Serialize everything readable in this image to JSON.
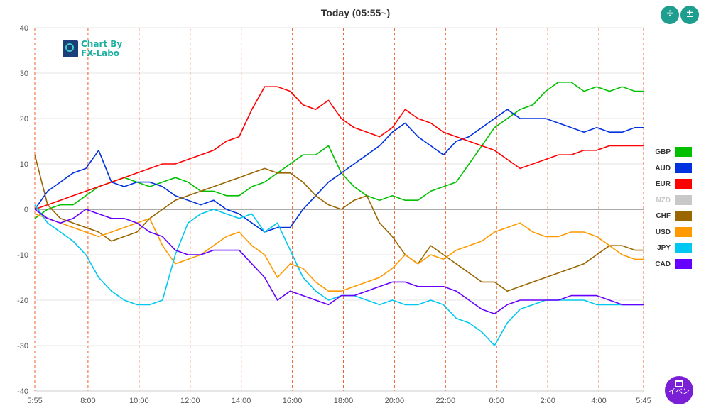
{
  "title": "Today  (05:55~)",
  "logo": {
    "line1": "Chart By",
    "line2": "FX-Labo"
  },
  "event_button": {
    "label": "イベン"
  },
  "toolbar": {
    "compress_icon": "compress-vertical-icon",
    "expand_icon": "expand-vertical-icon"
  },
  "chart_data": {
    "type": "line",
    "ylim": [
      -40,
      40
    ],
    "yticks": [
      "40",
      "30",
      "20",
      "10",
      "0",
      "-10",
      "-20",
      "-30",
      "-40"
    ],
    "xticks": [
      "5:55",
      "8:00",
      "10:00",
      "12:00",
      "14:00",
      "16:00",
      "18:00",
      "20:00",
      "22:00",
      "0:00",
      "2:00",
      "4:00",
      "5:45"
    ],
    "xtick_hours": [
      0,
      2.0833,
      4.0833,
      6.0833,
      8.0833,
      10.0833,
      12.0833,
      14.0833,
      16.0833,
      18.0833,
      20.0833,
      22.0833,
      23.8333
    ],
    "x_range_hours": [
      0,
      23.8333
    ],
    "grid": true,
    "legend_position": "right",
    "series": [
      {
        "name": "GBP",
        "color": "#00c000",
        "visible": true,
        "x": [
          0,
          0.5,
          1,
          1.5,
          2,
          2.5,
          3,
          3.5,
          4,
          4.5,
          5,
          5.5,
          6,
          6.5,
          7,
          7.5,
          8,
          8.5,
          9,
          9.5,
          10,
          10.5,
          11,
          11.5,
          12,
          12.5,
          13,
          13.5,
          14,
          14.5,
          15,
          15.5,
          16,
          16.5,
          17,
          17.5,
          18,
          18.5,
          19,
          19.5,
          20,
          20.5,
          21,
          21.5,
          22,
          22.5,
          23,
          23.5,
          23.83
        ],
        "y": [
          -2,
          0,
          1,
          1,
          3,
          5,
          6,
          7,
          6,
          5,
          6,
          7,
          6,
          4,
          4,
          3,
          3,
          5,
          6,
          8,
          10,
          12,
          12,
          14,
          8,
          5,
          3,
          2,
          3,
          2,
          2,
          4,
          5,
          6,
          10,
          14,
          18,
          20,
          22,
          23,
          26,
          28,
          28,
          26,
          27,
          26,
          27,
          26,
          26
        ]
      },
      {
        "name": "AUD",
        "color": "#0032e0",
        "visible": true,
        "x": [
          0,
          0.5,
          1,
          1.5,
          2,
          2.5,
          3,
          3.5,
          4,
          4.5,
          5,
          5.5,
          6,
          6.5,
          7,
          7.5,
          8,
          8.5,
          9,
          9.5,
          10,
          10.5,
          11,
          11.5,
          12,
          12.5,
          13,
          13.5,
          14,
          14.5,
          15,
          15.5,
          16,
          16.5,
          17,
          17.5,
          18,
          18.5,
          19,
          19.5,
          20,
          20.5,
          21,
          21.5,
          22,
          22.5,
          23,
          23.5,
          23.83
        ],
        "y": [
          0,
          4,
          6,
          8,
          9,
          13,
          6,
          5,
          6,
          6,
          5,
          3,
          2,
          1,
          2,
          0,
          -1,
          -3,
          -5,
          -4,
          -4,
          0,
          3,
          6,
          8,
          10,
          12,
          14,
          17,
          19,
          16,
          14,
          12,
          15,
          16,
          18,
          20,
          22,
          20,
          20,
          20,
          19,
          18,
          17,
          18,
          17,
          17,
          18,
          18
        ]
      },
      {
        "name": "EUR",
        "color": "#ff0000",
        "visible": true,
        "x": [
          0,
          0.5,
          1,
          1.5,
          2,
          2.5,
          3,
          3.5,
          4,
          4.5,
          5,
          5.5,
          6,
          6.5,
          7,
          7.5,
          8,
          8.5,
          9,
          9.5,
          10,
          10.5,
          11,
          11.5,
          12,
          12.5,
          13,
          13.5,
          14,
          14.5,
          15,
          15.5,
          16,
          16.5,
          17,
          17.5,
          18,
          18.5,
          19,
          19.5,
          20,
          20.5,
          21,
          21.5,
          22,
          22.5,
          23,
          23.5,
          23.83
        ],
        "y": [
          0,
          1,
          2,
          3,
          4,
          5,
          6,
          7,
          8,
          9,
          10,
          10,
          11,
          12,
          13,
          15,
          16,
          22,
          27,
          27,
          26,
          23,
          22,
          24,
          20,
          18,
          17,
          16,
          18,
          22,
          20,
          19,
          17,
          16,
          15,
          14,
          13,
          11,
          9,
          10,
          11,
          12,
          12,
          13,
          13,
          14,
          14,
          14,
          14
        ]
      },
      {
        "name": "NZD",
        "color": "#c8c8c8",
        "visible": false,
        "x": [],
        "y": []
      },
      {
        "name": "CHF",
        "color": "#996600",
        "visible": true,
        "x": [
          0,
          0.5,
          1,
          1.5,
          2,
          2.5,
          3,
          3.5,
          4,
          4.5,
          5,
          5.5,
          6,
          6.5,
          7,
          7.5,
          8,
          8.5,
          9,
          9.5,
          10,
          10.5,
          11,
          11.5,
          12,
          12.5,
          13,
          13.5,
          14,
          14.5,
          15,
          15.5,
          16,
          16.5,
          17,
          17.5,
          18,
          18.5,
          19,
          19.5,
          20,
          20.5,
          21,
          21.5,
          22,
          22.5,
          23,
          23.5,
          23.83
        ],
        "y": [
          12,
          1,
          -2,
          -3,
          -4,
          -5,
          -7,
          -6,
          -5,
          -2,
          0,
          2,
          3,
          4,
          5,
          6,
          7,
          8,
          9,
          8,
          8,
          6,
          3,
          1,
          0,
          2,
          3,
          -3,
          -6,
          -10,
          -12,
          -8,
          -10,
          -12,
          -14,
          -16,
          -16,
          -18,
          -17,
          -16,
          -15,
          -14,
          -13,
          -12,
          -10,
          -8,
          -8,
          -9,
          -9
        ]
      },
      {
        "name": "USD",
        "color": "#ff9900",
        "visible": true,
        "x": [
          0,
          0.5,
          1,
          1.5,
          2,
          2.5,
          3,
          3.5,
          4,
          4.5,
          5,
          5.5,
          6,
          6.5,
          7,
          7.5,
          8,
          8.5,
          9,
          9.5,
          10,
          10.5,
          11,
          11.5,
          12,
          12.5,
          13,
          13.5,
          14,
          14.5,
          15,
          15.5,
          16,
          16.5,
          17,
          17.5,
          18,
          18.5,
          19,
          19.5,
          20,
          20.5,
          21,
          21.5,
          22,
          22.5,
          23,
          23.5,
          23.83
        ],
        "y": [
          -1,
          -2,
          -3,
          -4,
          -5,
          -6,
          -5,
          -4,
          -3,
          -2,
          -8,
          -12,
          -11,
          -10,
          -8,
          -6,
          -5,
          -8,
          -10,
          -15,
          -12,
          -13,
          -16,
          -18,
          -18,
          -17,
          -16,
          -15,
          -13,
          -10,
          -12,
          -10,
          -11,
          -9,
          -8,
          -7,
          -5,
          -4,
          -3,
          -5,
          -6,
          -6,
          -5,
          -5,
          -6,
          -8,
          -10,
          -11,
          -11
        ]
      },
      {
        "name": "JPY",
        "color": "#00c8f0",
        "visible": true,
        "x": [
          0,
          0.5,
          1,
          1.5,
          2,
          2.5,
          3,
          3.5,
          4,
          4.5,
          5,
          5.5,
          6,
          6.5,
          7,
          7.5,
          8,
          8.5,
          9,
          9.5,
          10,
          10.5,
          11,
          11.5,
          12,
          12.5,
          13,
          13.5,
          14,
          14.5,
          15,
          15.5,
          16,
          16.5,
          17,
          17.5,
          18,
          18.5,
          19,
          19.5,
          20,
          20.5,
          21,
          21.5,
          22,
          22.5,
          23,
          23.5,
          23.83
        ],
        "y": [
          1,
          -3,
          -5,
          -7,
          -10,
          -15,
          -18,
          -20,
          -21,
          -21,
          -20,
          -10,
          -3,
          -1,
          0,
          -1,
          -2,
          -1,
          -5,
          -3,
          -9,
          -15,
          -18,
          -20,
          -19,
          -19,
          -20,
          -21,
          -20,
          -21,
          -21,
          -20,
          -21,
          -24,
          -25,
          -27,
          -30,
          -25,
          -22,
          -21,
          -20,
          -20,
          -20,
          -20,
          -21,
          -21,
          -21,
          -21,
          -21
        ]
      },
      {
        "name": "CAD",
        "color": "#6600ff",
        "visible": true,
        "x": [
          0,
          0.5,
          1,
          1.5,
          2,
          2.5,
          3,
          3.5,
          4,
          4.5,
          5,
          5.5,
          6,
          6.5,
          7,
          7.5,
          8,
          8.5,
          9,
          9.5,
          10,
          10.5,
          11,
          11.5,
          12,
          12.5,
          13,
          13.5,
          14,
          14.5,
          15,
          15.5,
          16,
          16.5,
          17,
          17.5,
          18,
          18.5,
          19,
          19.5,
          20,
          20.5,
          21,
          21.5,
          22,
          22.5,
          23,
          23.5,
          23.83
        ],
        "y": [
          0,
          -2,
          -3,
          -2,
          0,
          -1,
          -2,
          -2,
          -3,
          -5,
          -6,
          -9,
          -10,
          -10,
          -9,
          -9,
          -9,
          -12,
          -15,
          -20,
          -18,
          -19,
          -20,
          -21,
          -19,
          -19,
          -18,
          -17,
          -16,
          -16,
          -17,
          -17,
          -17,
          -18,
          -20,
          -22,
          -23,
          -21,
          -20,
          -20,
          -20,
          -20,
          -19,
          -19,
          -19,
          -20,
          -21,
          -21,
          -21
        ]
      }
    ]
  }
}
